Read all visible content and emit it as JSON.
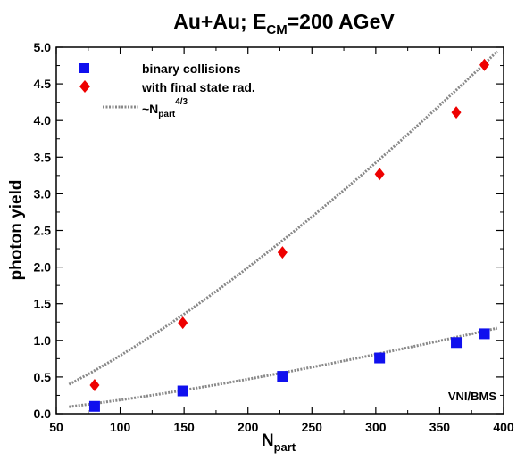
{
  "chart_data": {
    "type": "scatter",
    "title_main": "Au+Au; E",
    "title_sub": "CM",
    "title_tail": "=200 AGeV",
    "xlabel_main": "N",
    "xlabel_sub": "part",
    "ylabel": "photon yield",
    "annotation": "VNI/BMS",
    "xlim": [
      50,
      400
    ],
    "ylim": [
      0.0,
      5.0
    ],
    "xticks": [
      50,
      100,
      150,
      200,
      250,
      300,
      350,
      400
    ],
    "yticks": [
      0.0,
      0.5,
      1.0,
      1.5,
      2.0,
      2.5,
      3.0,
      3.5,
      4.0,
      4.5,
      5.0
    ],
    "xtick_labels": [
      "50",
      "100",
      "150",
      "200",
      "250",
      "300",
      "350",
      "400"
    ],
    "ytick_labels": [
      "0.0",
      "0.5",
      "1.0",
      "1.5",
      "2.0",
      "2.5",
      "3.0",
      "3.5",
      "4.0",
      "4.5",
      "5.0"
    ],
    "series": [
      {
        "name": "binary collisions",
        "marker": "square",
        "color": "#1010ee",
        "x": [
          80,
          149,
          227,
          303,
          363,
          385
        ],
        "y": [
          0.1,
          0.31,
          0.51,
          0.76,
          0.97,
          1.09
        ]
      },
      {
        "name": "with final state rad.",
        "marker": "diamond",
        "color": "#ee0000",
        "x": [
          80,
          149,
          227,
          303,
          363,
          385
        ],
        "y": [
          0.39,
          1.24,
          2.2,
          3.27,
          4.11,
          4.76
        ]
      }
    ],
    "fit_lines": [
      {
        "name_prefix": "~N",
        "name_sub": "part",
        "name_sup": "4/3",
        "exponent": 1.3333,
        "coef": 0.001706,
        "x_range": [
          60,
          395
        ]
      },
      {
        "exponent": 1.3333,
        "coef": 0.0004028,
        "x_range": [
          60,
          395
        ]
      }
    ],
    "fit_color": "#888888",
    "legend_position": "top-left"
  }
}
